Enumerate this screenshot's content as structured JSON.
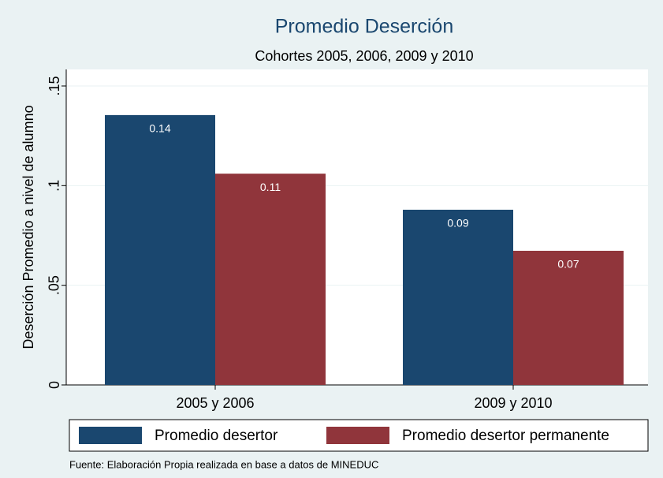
{
  "chart_data": {
    "type": "bar",
    "title": "Promedio Deserción",
    "subtitle": "Cohortes 2005, 2006, 2009 y 2010",
    "y_label": "Deserción Promedio a nivel de alumno",
    "note": "Fuente: Elaboración Propia realizada en base a datos de MINEDUC",
    "categories": [
      "2005 y 2006",
      "2009 y 2010"
    ],
    "series": [
      {
        "name": "Promedio desertor",
        "color": "#1a476f",
        "values": [
          0.1354,
          0.0879
        ],
        "value_labels": [
          "0.14",
          "0.09"
        ]
      },
      {
        "name": "Promedio desertor permanente",
        "color": "#90353b",
        "values": [
          0.106,
          0.0673
        ],
        "value_labels": [
          "0.11",
          "0.07"
        ]
      }
    ],
    "ylim": [
      0,
      0.15
    ],
    "yticks": [
      0,
      {
        "value": 0.05,
        "label": ".05"
      },
      {
        "value": 0.1,
        "label": ".1"
      },
      {
        "value": 0.15,
        "label": ".15"
      }
    ],
    "grid": true
  }
}
